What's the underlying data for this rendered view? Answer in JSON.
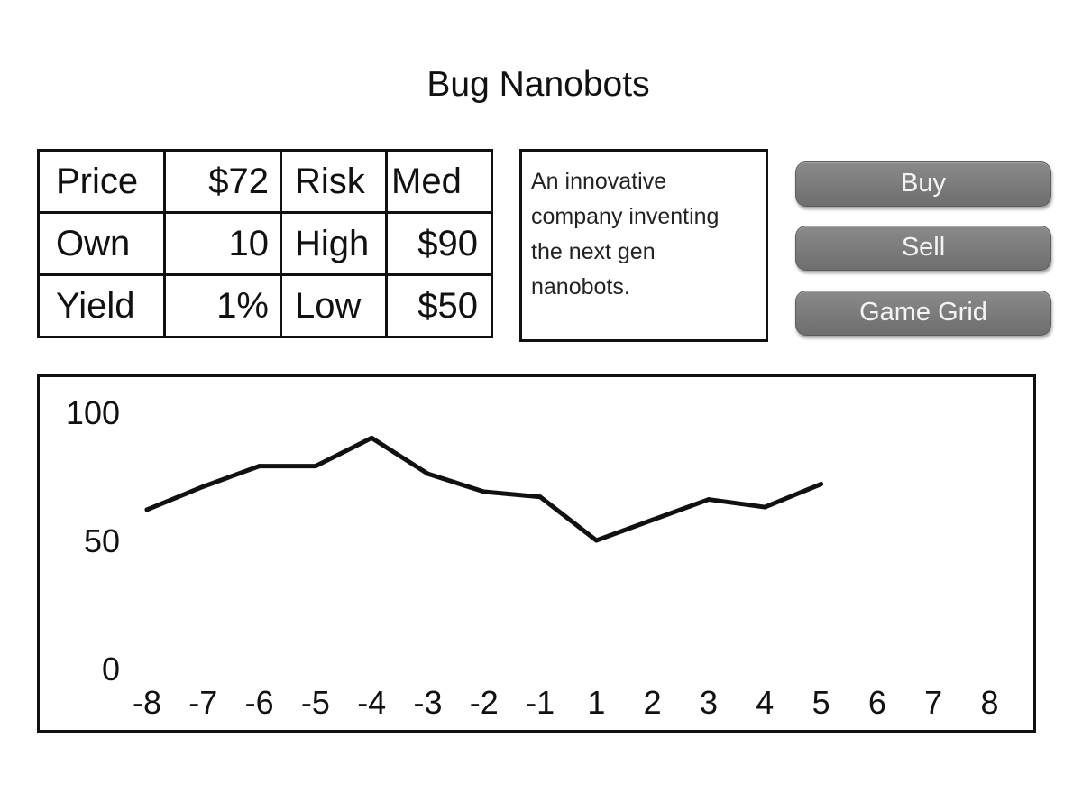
{
  "title": "Bug Nanobots",
  "stats": {
    "price_label": "Price",
    "price_value": "$72",
    "risk_label": "Risk",
    "risk_value": "Med",
    "own_label": "Own",
    "own_value": "10",
    "high_label": "High",
    "high_value": "$90",
    "yield_label": "Yield",
    "yield_value": "1%",
    "low_label": "Low",
    "low_value": "$50"
  },
  "description": "An innovative company inventing the next gen nanobots.",
  "buttons": {
    "buy": "Buy",
    "sell": "Sell",
    "game_grid": "Game Grid"
  },
  "chart_data": {
    "type": "line",
    "x": [
      -8,
      -7,
      -6,
      -5,
      -4,
      -3,
      -2,
      -1,
      1,
      2,
      3,
      4,
      5
    ],
    "values": [
      62,
      71,
      79,
      79,
      90,
      76,
      69,
      67,
      50,
      58,
      66,
      63,
      72
    ],
    "x_ticks": [
      -8,
      -7,
      -6,
      -5,
      -4,
      -3,
      -2,
      -1,
      1,
      2,
      3,
      4,
      5,
      6,
      7,
      8
    ],
    "y_ticks": [
      0,
      50,
      100
    ],
    "ylim": [
      0,
      100
    ],
    "grid": false,
    "title": "",
    "xlabel": "",
    "ylabel": ""
  }
}
